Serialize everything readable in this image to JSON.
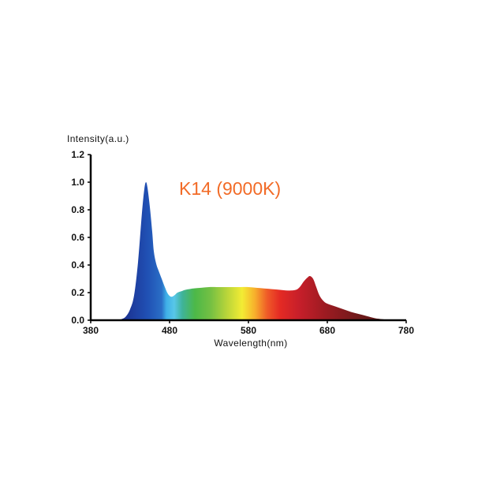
{
  "chart_data": {
    "type": "area",
    "title": "K14 (9000K)",
    "xlabel": "Wavelength(nm)",
    "ylabel": "Intensity(a.u.)",
    "xlim": [
      380,
      780
    ],
    "ylim": [
      0,
      1.2
    ],
    "x_ticks": [
      "380",
      "480",
      "580",
      "680",
      "780"
    ],
    "y_ticks": [
      "0.0",
      "0.2",
      "0.4",
      "0.6",
      "0.8",
      "1.0",
      "1.2"
    ],
    "fill": "visible-spectrum gradient",
    "grid": false,
    "series": [
      {
        "x": [
          380,
          410,
          420,
          425,
          430,
          435,
          440,
          445,
          448,
          450,
          452,
          455,
          458,
          460,
          463,
          466,
          470,
          474,
          478,
          482,
          486,
          490,
          495,
          500,
          510,
          520,
          530,
          540,
          550,
          560,
          570,
          580,
          590,
          600,
          610,
          620,
          630,
          640,
          645,
          650,
          655,
          658,
          662,
          666,
          670,
          675,
          680,
          690,
          700,
          710,
          720,
          730,
          740,
          750,
          760,
          780
        ],
        "y": [
          0,
          0,
          0.01,
          0.03,
          0.08,
          0.18,
          0.42,
          0.78,
          0.95,
          1.0,
          0.96,
          0.82,
          0.64,
          0.5,
          0.41,
          0.36,
          0.3,
          0.24,
          0.19,
          0.17,
          0.18,
          0.2,
          0.21,
          0.22,
          0.23,
          0.235,
          0.24,
          0.24,
          0.24,
          0.24,
          0.24,
          0.24,
          0.235,
          0.23,
          0.225,
          0.22,
          0.215,
          0.22,
          0.24,
          0.28,
          0.31,
          0.32,
          0.3,
          0.24,
          0.18,
          0.14,
          0.12,
          0.1,
          0.08,
          0.06,
          0.045,
          0.03,
          0.015,
          0.007,
          0.002,
          0
        ]
      }
    ]
  }
}
